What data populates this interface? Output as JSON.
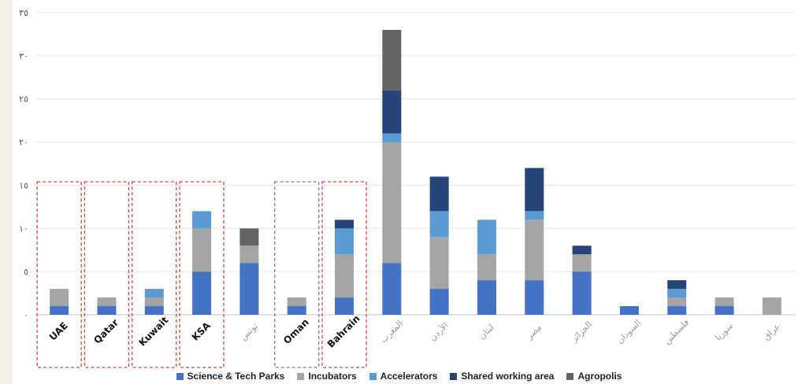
{
  "chart_data": {
    "type": "bar",
    "stacked": true,
    "categories": [
      "UAE",
      "Qatar",
      "Kuwait",
      "KSA",
      "تونس",
      "Oman",
      "Bahrain",
      "المغرب",
      "الأردن",
      "لبنان",
      "مصر",
      "الجزائر",
      "السودان",
      "فلسطين",
      "سوريا",
      "عراق"
    ],
    "series": [
      {
        "name": "Science & Tech Parks",
        "color": "#4472c4",
        "values": [
          1,
          1,
          1,
          5,
          6,
          1,
          2,
          6,
          3,
          4,
          4,
          5,
          1,
          1,
          1,
          0
        ]
      },
      {
        "name": "Incubators",
        "color": "#a5a5a5",
        "values": [
          2,
          1,
          1,
          5,
          2,
          1,
          5,
          14,
          6,
          3,
          7,
          2,
          0,
          1,
          1,
          2
        ]
      },
      {
        "name": "Accelerators",
        "color": "#5b9bd5",
        "values": [
          0,
          0,
          1,
          2,
          0,
          0,
          3,
          1,
          3,
          4,
          1,
          0,
          0,
          1,
          0,
          0
        ]
      },
      {
        "name": "Shared working area",
        "color": "#264478",
        "values": [
          0,
          0,
          0,
          0,
          0,
          0,
          1,
          5,
          4,
          0,
          5,
          1,
          0,
          1,
          0,
          0
        ]
      },
      {
        "name": "Agropolis",
        "color": "#636363",
        "values": [
          0,
          0,
          0,
          0,
          2,
          0,
          0,
          7,
          0,
          0,
          0,
          0,
          0,
          0,
          0,
          0
        ]
      }
    ],
    "yticks": [
      "٠",
      "٥",
      "١٠",
      "١٥",
      "٢٠",
      "٢٥",
      "٣٠",
      "٣٥"
    ],
    "ylim": [
      0,
      35
    ],
    "grid": true,
    "legend": "bottom",
    "highlighted": [
      {
        "category": "UAE",
        "color": "#e03c3c"
      },
      {
        "category": "Qatar",
        "color": "#e03c3c"
      },
      {
        "category": "Kuwait",
        "color": "#e03c3c"
      },
      {
        "category": "KSA",
        "color": "#e03c3c"
      },
      {
        "category": "Oman",
        "color": "#7f7f9f"
      },
      {
        "category": "Bahrain",
        "color": "#e03c3c"
      }
    ],
    "bold_labels": [
      "UAE",
      "Qatar",
      "Kuwait",
      "KSA",
      "Oman",
      "Bahrain"
    ]
  }
}
